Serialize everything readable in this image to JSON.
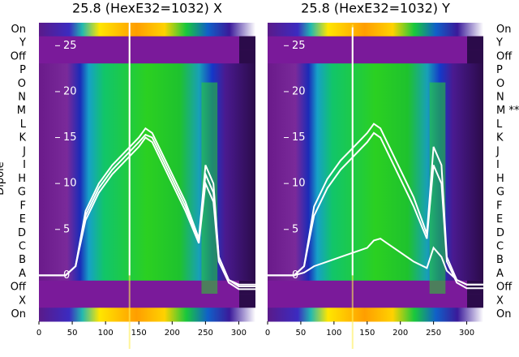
{
  "chart_data": [
    {
      "type": "heatmap",
      "title": "25.8 (HexE32=1032) X",
      "ylabel": "Dipole",
      "row_labels_top_to_bottom": [
        "On",
        "Y",
        "Off",
        "P",
        "O",
        "N",
        "M",
        "L",
        "K",
        "J",
        "I",
        "H",
        "G",
        "F",
        "E",
        "D",
        "C",
        "B",
        "A",
        "Off",
        "X",
        "On"
      ],
      "x_ticks": [
        0,
        50,
        100,
        150,
        200,
        250,
        300
      ],
      "xlim": [
        0,
        325
      ],
      "inner_y_ticks": [
        25,
        20,
        15,
        10,
        5,
        0
      ],
      "inner_ylim": [
        -5,
        27.5
      ],
      "overlay_series": [
        {
          "x": [
            0,
            40,
            55,
            70,
            90,
            110,
            130,
            150,
            160,
            170,
            180,
            200,
            220,
            240,
            250,
            262,
            270,
            285,
            300,
            325
          ],
          "y": [
            0,
            0,
            1,
            7,
            10,
            12,
            13.5,
            15,
            16,
            15.5,
            14,
            11,
            8,
            4,
            12,
            10,
            2,
            -0.5,
            -1,
            -1
          ]
        },
        {
          "x": [
            0,
            40,
            55,
            70,
            90,
            110,
            130,
            150,
            160,
            170,
            180,
            200,
            220,
            240,
            250,
            262,
            270,
            285,
            300,
            325
          ],
          "y": [
            0,
            0,
            1,
            6.5,
            9.5,
            11.5,
            13,
            14.5,
            15.3,
            15,
            13.5,
            10.5,
            7.5,
            3.8,
            11,
            9,
            2,
            -0.5,
            -1.2,
            -1.2
          ]
        },
        {
          "x": [
            0,
            40,
            55,
            70,
            90,
            110,
            130,
            150,
            160,
            170,
            180,
            200,
            220,
            240,
            250,
            262,
            270,
            285,
            300,
            325
          ],
          "y": [
            0,
            0,
            1,
            6,
            9,
            11,
            12.5,
            14,
            15,
            14.5,
            13,
            10,
            7,
            3.5,
            10,
            8,
            1.5,
            -0.8,
            -1.5,
            -1.5
          ]
        }
      ],
      "spike_x": 136,
      "spike_top": 27.5
    },
    {
      "type": "heatmap",
      "title": "25.8 (HexE32=1032) Y",
      "row_labels_top_to_bottom": [
        "On",
        "Y",
        "Off",
        "P",
        "O",
        "N",
        "M **",
        "L",
        "K",
        "J",
        "I",
        "H",
        "G",
        "F",
        "E",
        "D",
        "C",
        "B",
        "A",
        "Off",
        "X",
        "On"
      ],
      "x_ticks": [
        0,
        50,
        100,
        150,
        200,
        250,
        300
      ],
      "xlim": [
        0,
        325
      ],
      "inner_y_ticks": [
        25,
        20,
        15,
        10,
        5,
        0
      ],
      "inner_ylim": [
        -5,
        27.5
      ],
      "overlay_series": [
        {
          "x": [
            0,
            40,
            55,
            70,
            90,
            110,
            130,
            150,
            160,
            170,
            180,
            200,
            220,
            240,
            250,
            262,
            270,
            285,
            300,
            325
          ],
          "y": [
            0,
            0,
            1,
            7.5,
            10.5,
            12.5,
            14,
            15.5,
            16.5,
            16,
            14.5,
            11.5,
            8.5,
            4.5,
            14,
            12,
            2,
            -0.5,
            -1,
            -1
          ]
        },
        {
          "x": [
            0,
            40,
            55,
            70,
            90,
            110,
            130,
            150,
            160,
            170,
            180,
            200,
            220,
            240,
            250,
            262,
            270,
            285,
            300,
            325
          ],
          "y": [
            0,
            0,
            1,
            6.5,
            9.5,
            11.5,
            13,
            14.5,
            15.5,
            15,
            13.5,
            10.5,
            7.5,
            4,
            12,
            10,
            1.5,
            -0.8,
            -1.4,
            -1.4
          ]
        },
        {
          "x": [
            0,
            40,
            55,
            70,
            90,
            110,
            130,
            150,
            160,
            170,
            180,
            200,
            220,
            240,
            250,
            262,
            270,
            285,
            300,
            325
          ],
          "y": [
            0,
            0,
            0.3,
            1,
            1.5,
            2,
            2.5,
            3,
            3.8,
            4,
            3.5,
            2.5,
            1.5,
            0.8,
            3,
            2,
            0.5,
            -0.5,
            -1,
            -1
          ]
        }
      ],
      "spike_x": 128,
      "spike_top": 27
    }
  ]
}
